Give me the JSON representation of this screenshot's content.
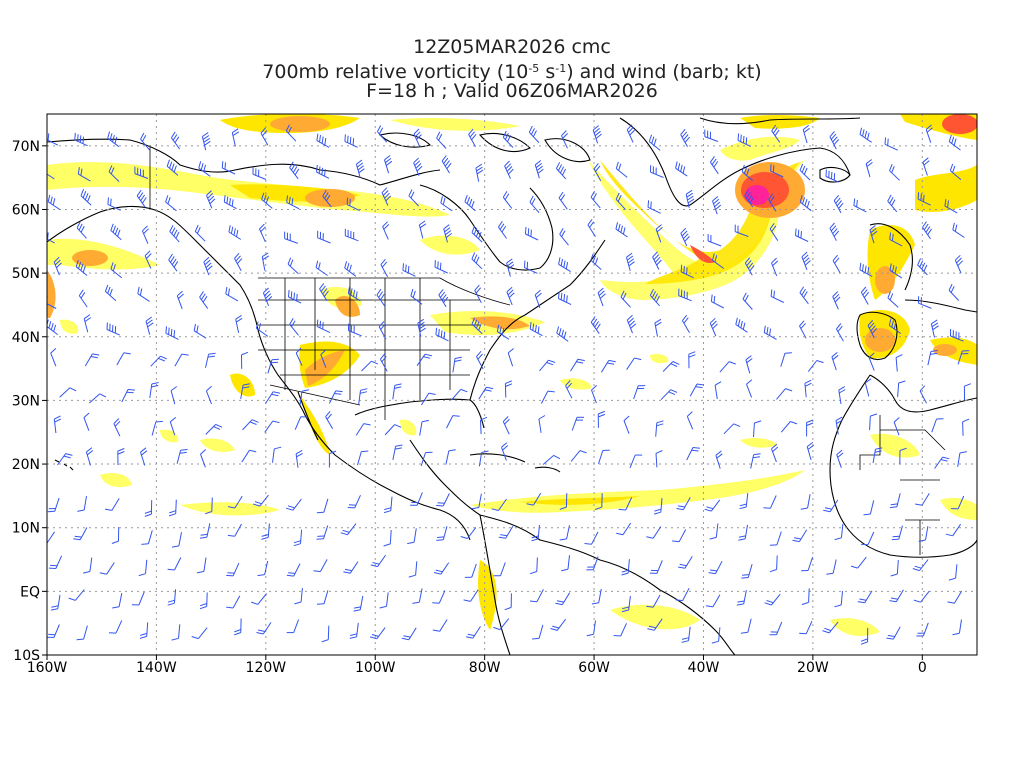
{
  "title": {
    "line1": "12Z05MAR2026 cmc",
    "line2_pre": "700mb relative vorticity (10",
    "line2_exp1": "-5",
    "line2_mid": " s",
    "line2_exp2": "-1",
    "line2_post": ") and wind (barb; kt)",
    "line3": "F=18 h ; Valid 06Z06MAR2026"
  },
  "axes": {
    "lon_labels": [
      "160W",
      "140W",
      "120W",
      "100W",
      "80W",
      "60W",
      "40W",
      "20W",
      "0"
    ],
    "lat_labels": [
      "70N",
      "60N",
      "50N",
      "40N",
      "30N",
      "20N",
      "10N",
      "EQ",
      "10S"
    ],
    "lon_range": [
      -160,
      10
    ],
    "lat_range": [
      -10,
      75
    ]
  },
  "colors": {
    "shade_light": "#ffff66",
    "shade_yellow": "#ffe600",
    "shade_orange": "#ffaa33",
    "shade_dark": "#ff5533",
    "shade_max": "#ff2299",
    "barb": "#3355ee",
    "coast": "#000000",
    "grid": "#999999"
  }
}
